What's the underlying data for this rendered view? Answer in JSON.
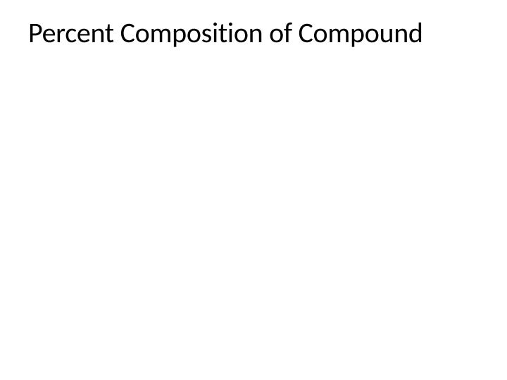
{
  "slide": {
    "title": "Percent Composition of Compound",
    "background_color": "#ffffff",
    "title_color": "#000000",
    "title_fontsize": 40,
    "title_fontweight": 400,
    "font_family": "Calibri"
  }
}
